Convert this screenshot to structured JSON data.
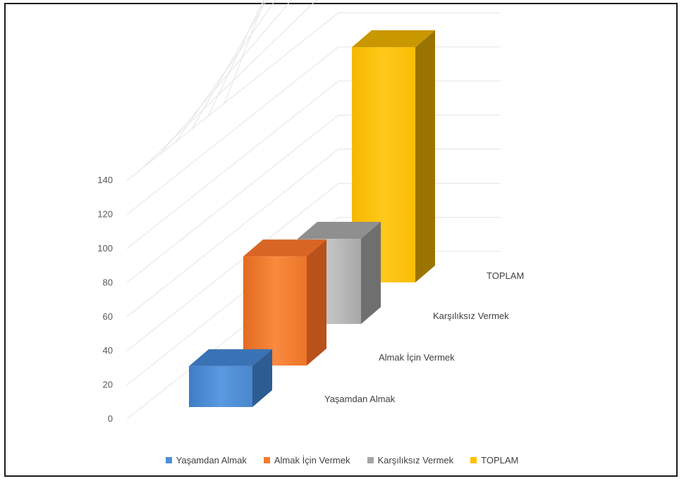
{
  "chart_data": {
    "type": "bar",
    "categories": [
      "Yaşamdan Almak",
      "Almak İçin Vermek",
      "Karşılıksız Vermek",
      "TOPLAM"
    ],
    "values": [
      24,
      64,
      50,
      138
    ],
    "ylim": [
      0,
      140
    ],
    "yticks": [
      0,
      20,
      40,
      60,
      80,
      100,
      120,
      140
    ],
    "colors": [
      "#4f8fd6",
      "#f47d2f",
      "#a5a5a5",
      "#ffc000"
    ],
    "grid": true,
    "legend_position": "bottom",
    "projection": "3d-column-depth"
  },
  "legend": {
    "items": [
      "Yaşamdan Almak",
      "Almak İçin Vermek",
      "Karşılıksız Vermek",
      "TOPLAM"
    ]
  }
}
